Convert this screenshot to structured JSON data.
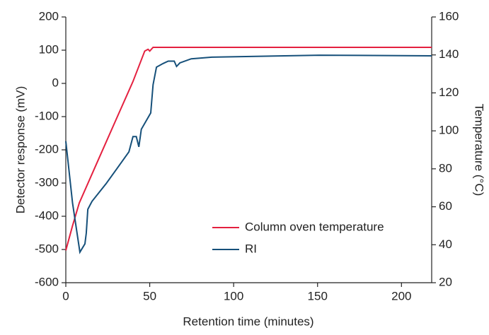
{
  "chart_data": {
    "type": "line",
    "xlabel": "Retention time (minutes)",
    "ylabel": "Detector response (mV)",
    "y2label": "Temperature (°C)",
    "xlim": [
      0,
      218
    ],
    "xticks": [
      0,
      50,
      100,
      150,
      200
    ],
    "ylim": [
      -600,
      200
    ],
    "yticks": [
      -600,
      -500,
      -400,
      -300,
      -200,
      -100,
      0,
      100,
      200
    ],
    "y2lim": [
      20,
      160
    ],
    "y2ticks": [
      20,
      40,
      60,
      80,
      100,
      120,
      140,
      160
    ],
    "legend": "lower right",
    "grid": false,
    "series": [
      {
        "name": "Column oven temperature",
        "color": "#e4203f",
        "axis": "y2",
        "x": [
          0,
          4,
          8,
          20,
          30,
          40,
          47,
          49,
          50,
          52,
          218
        ],
        "values": [
          37,
          50,
          62,
          86,
          106,
          126,
          142,
          143,
          142,
          144,
          144
        ]
      },
      {
        "name": "RI",
        "color": "#16507a",
        "axis": "y",
        "x": [
          0,
          4,
          8.4,
          11.4,
          12.2,
          13.1,
          15.6,
          24,
          30,
          37.6,
          40,
          42,
          43.5,
          45,
          50.6,
          52,
          54,
          58,
          61,
          64.6,
          66,
          68,
          74.7,
          87,
          151,
          218
        ],
        "values": [
          -174,
          -360,
          -508,
          -483,
          -451,
          -379,
          -355,
          -302,
          -260,
          -206,
          -160,
          -160,
          -191,
          -138,
          -89,
          -4,
          49,
          60,
          67,
          67,
          51,
          62,
          74,
          79,
          85,
          83
        ]
      }
    ]
  }
}
